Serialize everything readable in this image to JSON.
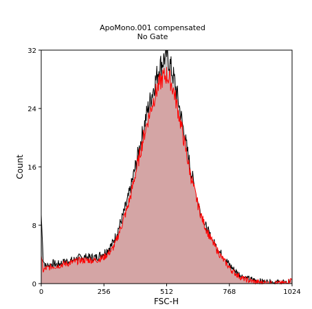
{
  "chart_data": {
    "type": "area",
    "title": "ApoMono.001 compensated",
    "subtitle": "No Gate",
    "xlabel": "FSC-H",
    "ylabel": "Count",
    "xlim": [
      0,
      1024
    ],
    "ylim": [
      0,
      32
    ],
    "x_ticks": [
      0,
      256,
      512,
      768,
      1024
    ],
    "y_ticks": [
      0,
      8,
      16,
      24,
      32
    ],
    "grid": false,
    "legend": "none",
    "colors": {
      "gray_fill": "#c8c8c8",
      "black_line": "#000000",
      "red_fill": "#d4a5a5",
      "red_line": "#ff0000"
    },
    "series": [
      {
        "x": [
          0,
          8,
          16,
          32,
          48,
          64,
          96,
          128,
          160,
          192,
          224,
          256,
          288,
          304,
          320,
          336,
          352,
          368,
          384,
          400,
          416,
          432,
          448,
          464,
          480,
          496,
          512,
          528,
          544,
          560,
          576,
          592,
          608,
          624,
          640,
          656,
          672,
          688,
          704,
          720,
          736,
          752,
          768,
          784,
          800,
          816,
          832,
          848,
          864,
          896,
          928,
          960,
          992,
          1024
        ],
        "values": [
          9.4,
          3.5,
          2.4,
          2.5,
          2.8,
          2.6,
          3.0,
          3.2,
          3.6,
          3.6,
          3.6,
          4.2,
          5.3,
          6.5,
          8.0,
          9.6,
          11.4,
          13.5,
          16.0,
          18.5,
          21.0,
          23.5,
          25.5,
          27.5,
          29.5,
          30.5,
          31.5,
          29.8,
          27.8,
          25.0,
          22.0,
          19.0,
          16.0,
          13.5,
          11.0,
          9.2,
          7.8,
          6.6,
          5.6,
          4.8,
          4.0,
          3.3,
          2.6,
          2.0,
          1.5,
          1.1,
          0.8,
          0.6,
          0.5,
          0.3,
          0.2,
          0.15,
          0.1,
          0.2
        ]
      },
      {
        "x": [
          0,
          8,
          16,
          32,
          48,
          64,
          96,
          128,
          160,
          192,
          224,
          256,
          288,
          304,
          320,
          336,
          352,
          368,
          384,
          400,
          416,
          432,
          448,
          464,
          480,
          496,
          512,
          528,
          544,
          560,
          576,
          592,
          608,
          624,
          640,
          656,
          672,
          688,
          704,
          720,
          736,
          752,
          768,
          784,
          800,
          816,
          832,
          848,
          864,
          896,
          928,
          960,
          992,
          1024
        ],
        "values": [
          3.8,
          1.8,
          2.0,
          2.2,
          2.4,
          2.4,
          2.7,
          2.9,
          3.2,
          3.2,
          3.2,
          3.6,
          4.6,
          5.6,
          7.2,
          8.8,
          10.4,
          12.5,
          15.0,
          17.3,
          19.8,
          22.0,
          24.0,
          25.8,
          27.2,
          28.2,
          28.6,
          27.8,
          26.0,
          23.5,
          20.8,
          18.0,
          15.2,
          12.9,
          10.8,
          9.0,
          7.6,
          6.4,
          5.4,
          4.5,
          3.6,
          2.9,
          2.2,
          1.6,
          1.2,
          0.8,
          0.6,
          0.4,
          0.3,
          0.15,
          0.1,
          0.05,
          0.05,
          0.6
        ]
      }
    ]
  }
}
